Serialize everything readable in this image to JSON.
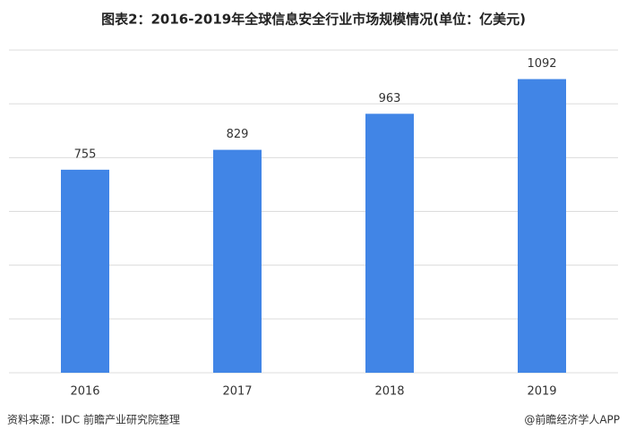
{
  "chart_data": {
    "type": "bar",
    "title": "图表2：2016-2019年全球信息安全行业市场规模情况(单位：亿美元)",
    "categories": [
      "2016",
      "2017",
      "2018",
      "2019"
    ],
    "values": [
      755,
      829,
      963,
      1092
    ],
    "color": "#4185e6",
    "ylim": [
      0,
      1200
    ],
    "yticks": [
      0,
      200,
      400,
      600,
      800,
      1000,
      1200
    ],
    "grid": true
  },
  "footer": {
    "source": "资料来源：IDC 前瞻产业研究院整理",
    "brand": "@前瞻经济学人APP"
  }
}
